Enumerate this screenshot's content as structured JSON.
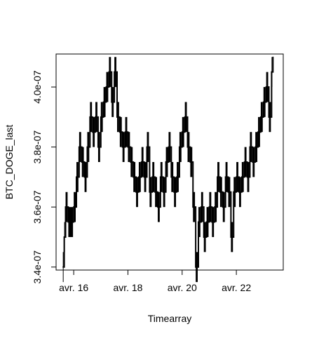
{
  "chart_data": {
    "type": "line",
    "title": "",
    "xlabel": "Timearray",
    "ylabel": "BTC_DOGE_last",
    "x_ticks": [
      {
        "value": 16,
        "label": "avr. 16"
      },
      {
        "value": 18,
        "label": "avr. 18"
      },
      {
        "value": 20,
        "label": "avr. 20"
      },
      {
        "value": 22,
        "label": "avr. 22"
      }
    ],
    "y_ticks": [
      {
        "value": 3.4e-07,
        "label": "3.4e-07"
      },
      {
        "value": 3.6e-07,
        "label": "3.6e-07"
      },
      {
        "value": 3.8e-07,
        "label": "3.8e-07"
      },
      {
        "value": 4e-07,
        "label": "4.0e-07"
      }
    ],
    "xlim": [
      15.35,
      23.73
    ],
    "ylim": [
      3.39e-07,
      4.11e-07
    ],
    "grid": false,
    "legend": "none",
    "line_color": "#000000",
    "series": [
      {
        "x": [
          15.6,
          15.65,
          15.7,
          15.8,
          16.0,
          16.1,
          16.2,
          16.3,
          16.4,
          16.5,
          16.6,
          16.7,
          16.8,
          16.9,
          17.0,
          17.1,
          17.2,
          17.3,
          17.4,
          17.5,
          17.6,
          17.7,
          17.8,
          17.9,
          18.0,
          18.1,
          18.2,
          18.3,
          18.4,
          18.5,
          18.6,
          18.7,
          18.8,
          18.9,
          19.0,
          19.1,
          19.2,
          19.3,
          19.4,
          19.5,
          19.6,
          19.7,
          19.8,
          19.9,
          20.0,
          20.1,
          20.2,
          20.3,
          20.4,
          20.5,
          20.6,
          20.7,
          20.8,
          20.9,
          21.0,
          21.1,
          21.2,
          21.3,
          21.4,
          21.5,
          21.6,
          21.7,
          21.8,
          21.9,
          22.0,
          22.1,
          22.2,
          22.3,
          22.4,
          22.5,
          22.6,
          22.7,
          22.8,
          22.9,
          23.0,
          23.1,
          23.2,
          23.3,
          23.35
        ],
        "values": [
          3.4e-07,
          3.5e-07,
          3.6e-07,
          3.55e-07,
          3.6e-07,
          3.7e-07,
          3.8e-07,
          3.75e-07,
          3.7e-07,
          3.8e-07,
          3.9e-07,
          3.85e-07,
          3.9e-07,
          3.8e-07,
          3.9e-07,
          3.95e-07,
          4e-07,
          4.05e-07,
          3.95e-07,
          4.05e-07,
          3.9e-07,
          3.85e-07,
          3.8e-07,
          3.85e-07,
          3.8e-07,
          3.75e-07,
          3.7e-07,
          3.65e-07,
          3.7e-07,
          3.75e-07,
          3.7e-07,
          3.8e-07,
          3.65e-07,
          3.7e-07,
          3.65e-07,
          3.6e-07,
          3.7e-07,
          3.65e-07,
          3.75e-07,
          3.8e-07,
          3.7e-07,
          3.65e-07,
          3.7e-07,
          3.8e-07,
          3.85e-07,
          3.9e-07,
          3.8e-07,
          3.75e-07,
          3.6e-07,
          3.4e-07,
          3.55e-07,
          3.6e-07,
          3.5e-07,
          3.55e-07,
          3.6e-07,
          3.55e-07,
          3.6e-07,
          3.7e-07,
          3.65e-07,
          3.6e-07,
          3.7e-07,
          3.65e-07,
          3.5e-07,
          3.65e-07,
          3.7e-07,
          3.65e-07,
          3.7e-07,
          3.75e-07,
          3.7e-07,
          3.8e-07,
          3.75e-07,
          3.8e-07,
          3.85e-07,
          3.9e-07,
          3.95e-07,
          4e-07,
          3.9e-07,
          4.05e-07,
          4.1e-07
        ]
      }
    ]
  }
}
